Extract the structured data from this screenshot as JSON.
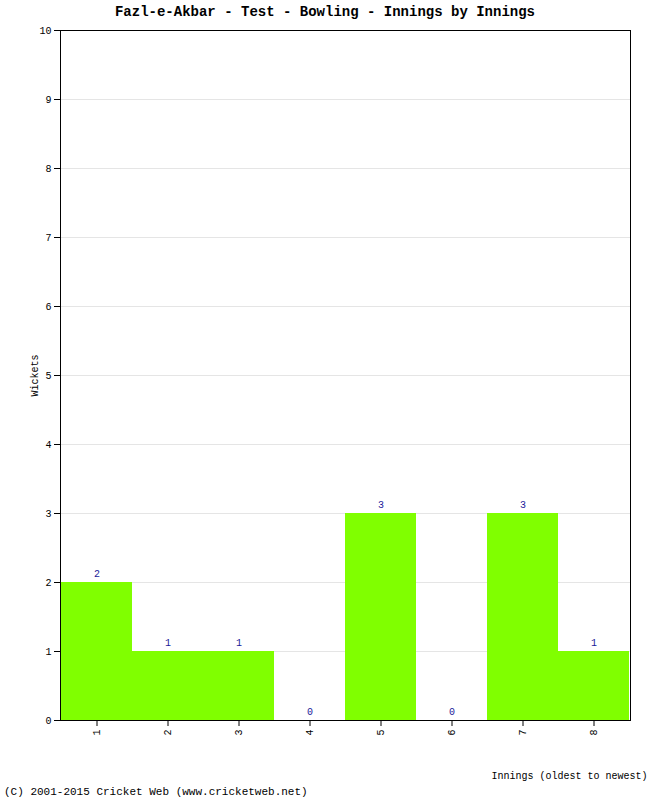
{
  "chart_data": {
    "type": "bar",
    "title": "Fazl-e-Akbar - Test - Bowling - Innings by Innings",
    "x_label": "Innings (oldest to newest)",
    "y_label": "Wickets",
    "caption": "(C) 2001-2015 Cricket Web (www.cricketweb.net)",
    "categories": [
      "1",
      "2",
      "3",
      "4",
      "5",
      "6",
      "7",
      "8"
    ],
    "values": [
      2,
      1,
      1,
      0,
      3,
      0,
      3,
      1
    ],
    "color": "#80ff00",
    "ylim": [
      0,
      10
    ],
    "yticks": [
      0,
      1,
      2,
      3,
      4,
      5,
      6,
      7,
      8,
      9,
      10
    ],
    "grid": true,
    "data_labels": true
  }
}
